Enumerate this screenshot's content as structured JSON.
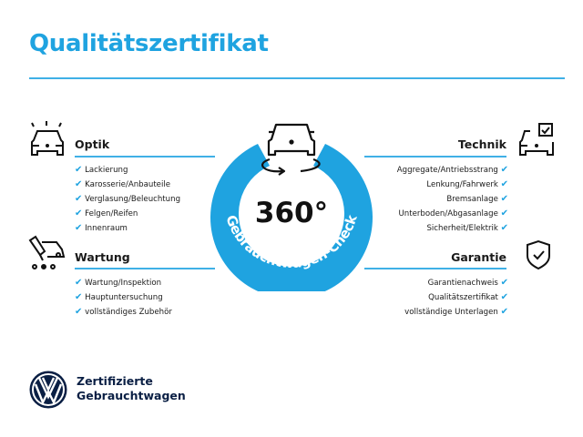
{
  "title": "Qualitätszertifikat",
  "accent_color": "#1fa3e0",
  "center": {
    "big": "360°",
    "arc": "Gebrauchtwagen-Check",
    "icon": "car-rotate-icon"
  },
  "check_icon": "✔",
  "optik": {
    "heading": "Optik",
    "icon": "car-lights-icon",
    "items": [
      "Lackierung",
      "Karosserie/Anbauteile",
      "Verglasung/Beleuchtung",
      "Felgen/Reifen",
      "Innenraum"
    ]
  },
  "wartung": {
    "heading": "Wartung",
    "icon": "service-car-icon",
    "items": [
      "Wartung/Inspektion",
      "Hauptuntersuchung",
      "vollständiges Zubehör"
    ]
  },
  "technik": {
    "heading": "Technik",
    "icon": "car-checkbox-icon",
    "items": [
      "Aggregate/Antriebsstrang",
      "Lenkung/Fahrwerk",
      "Bremsanlage",
      "Unterboden/Abgasanlage",
      "Sicherheit/Elektrik"
    ]
  },
  "garantie": {
    "heading": "Garantie",
    "icon": "shield-check-icon",
    "items": [
      "Garantienachweis",
      "Qualitätszertifikat",
      "vollständige Unterlagen"
    ]
  },
  "footer": {
    "line1": "Zertifizierte",
    "line2": "Gebrauchtwagen",
    "logo": "vw-logo"
  }
}
